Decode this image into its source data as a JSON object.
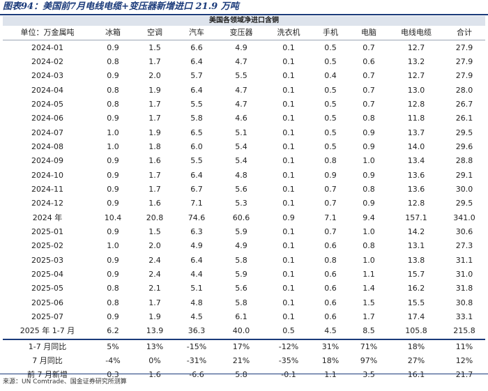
{
  "title": "图表94：美国前7月电线电缆+变压器新增进口 21.9 万吨",
  "table_title": "美国各领域净进口含铜",
  "headers": [
    "单位：万金属吨",
    "冰箱",
    "空调",
    "汽车",
    "变压器",
    "洗衣机",
    "手机",
    "电脑",
    "电线电缆",
    "合计"
  ],
  "rows": [
    [
      "2024-01",
      "0.9",
      "1.5",
      "6.6",
      "4.9",
      "0.1",
      "0.5",
      "0.7",
      "12.7",
      "27.9"
    ],
    [
      "2024-02",
      "0.8",
      "1.7",
      "6.4",
      "4.7",
      "0.1",
      "0.5",
      "0.6",
      "13.2",
      "27.9"
    ],
    [
      "2024-03",
      "0.9",
      "2.0",
      "5.7",
      "5.5",
      "0.1",
      "0.4",
      "0.7",
      "12.7",
      "27.9"
    ],
    [
      "2024-04",
      "0.8",
      "1.9",
      "6.4",
      "4.7",
      "0.1",
      "0.5",
      "0.7",
      "13.0",
      "28.0"
    ],
    [
      "2024-05",
      "0.8",
      "1.7",
      "5.5",
      "4.7",
      "0.1",
      "0.5",
      "0.7",
      "12.8",
      "26.7"
    ],
    [
      "2024-06",
      "0.9",
      "1.7",
      "5.8",
      "4.6",
      "0.1",
      "0.5",
      "0.8",
      "11.8",
      "26.1"
    ],
    [
      "2024-07",
      "1.0",
      "1.9",
      "6.5",
      "5.1",
      "0.1",
      "0.5",
      "0.9",
      "13.7",
      "29.5"
    ],
    [
      "2024-08",
      "1.0",
      "1.8",
      "6.0",
      "5.4",
      "0.1",
      "0.5",
      "0.9",
      "14.0",
      "29.6"
    ],
    [
      "2024-09",
      "0.9",
      "1.6",
      "5.5",
      "5.4",
      "0.1",
      "0.8",
      "1.0",
      "13.4",
      "28.8"
    ],
    [
      "2024-10",
      "0.9",
      "1.7",
      "6.4",
      "4.8",
      "0.1",
      "0.9",
      "0.9",
      "13.6",
      "29.1"
    ],
    [
      "2024-11",
      "0.9",
      "1.7",
      "6.7",
      "5.6",
      "0.1",
      "0.7",
      "0.8",
      "13.6",
      "30.0"
    ],
    [
      "2024-12",
      "0.9",
      "1.6",
      "7.1",
      "5.3",
      "0.1",
      "0.7",
      "0.9",
      "12.8",
      "29.5"
    ],
    [
      "2024 年",
      "10.4",
      "20.8",
      "74.6",
      "60.6",
      "0.9",
      "7.1",
      "9.4",
      "157.1",
      "341.0"
    ],
    [
      "2025-01",
      "0.9",
      "1.5",
      "6.3",
      "5.9",
      "0.1",
      "0.7",
      "1.0",
      "14.2",
      "30.6"
    ],
    [
      "2025-02",
      "1.0",
      "2.0",
      "4.9",
      "4.9",
      "0.1",
      "0.6",
      "0.8",
      "13.1",
      "27.3"
    ],
    [
      "2025-03",
      "0.9",
      "2.4",
      "6.4",
      "5.8",
      "0.1",
      "0.8",
      "1.0",
      "13.8",
      "31.1"
    ],
    [
      "2025-04",
      "0.9",
      "2.4",
      "4.4",
      "5.9",
      "0.1",
      "0.6",
      "1.1",
      "15.7",
      "31.0"
    ],
    [
      "2025-05",
      "0.8",
      "2.1",
      "5.1",
      "5.6",
      "0.1",
      "0.6",
      "1.4",
      "16.2",
      "31.8"
    ],
    [
      "2025-06",
      "0.8",
      "1.7",
      "4.8",
      "5.8",
      "0.1",
      "0.6",
      "1.5",
      "15.5",
      "30.8"
    ],
    [
      "2025-07",
      "0.9",
      "1.9",
      "4.5",
      "6.1",
      "0.1",
      "0.6",
      "1.7",
      "17.4",
      "33.1"
    ],
    [
      "2025 年 1-7 月",
      "6.2",
      "13.9",
      "36.3",
      "40.0",
      "0.5",
      "4.5",
      "8.5",
      "105.8",
      "215.8"
    ],
    [
      "1-7 月同比",
      "5%",
      "13%",
      "-15%",
      "17%",
      "-12%",
      "31%",
      "71%",
      "18%",
      "11%"
    ],
    [
      "7 月同比",
      "-4%",
      "0%",
      "-31%",
      "21%",
      "-35%",
      "18%",
      "97%",
      "27%",
      "12%"
    ],
    [
      "前 7 月新增",
      "0.3",
      "1.6",
      "-6.6",
      "5.8",
      "-0.1",
      "1.1",
      "3.5",
      "16.1",
      "21.7"
    ]
  ],
  "source": "来源：UN Comtrade、国金证券研究所测算"
}
